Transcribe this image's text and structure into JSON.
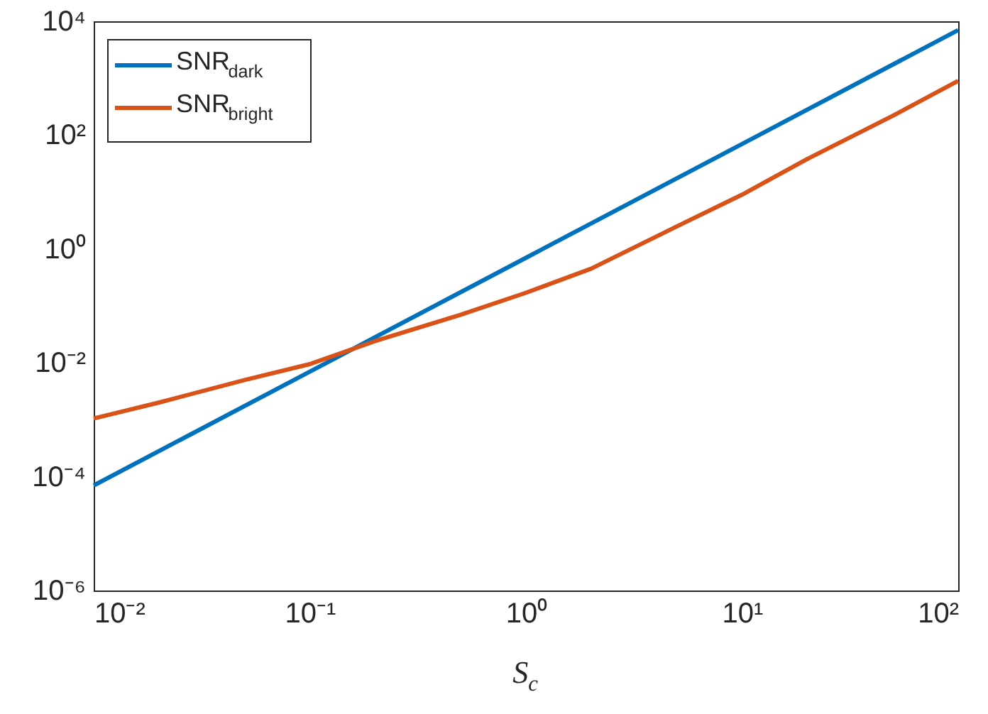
{
  "chart_data": {
    "type": "line",
    "xlabel": "S$_{c}$",
    "log": "xy",
    "grid": false,
    "legend": "top left",
    "line_style": "solid",
    "marker": "none",
    "xlim": [
      0.01,
      100
    ],
    "ylim": [
      1e-06,
      10000
    ],
    "xticks": [
      {
        "value": 0.01,
        "label": "10⁻²"
      },
      {
        "value": 0.1,
        "label": "10⁻¹"
      },
      {
        "value": 1,
        "label": "10⁰"
      },
      {
        "value": 10,
        "label": "10¹"
      },
      {
        "value": 100,
        "label": "10²"
      }
    ],
    "yticks": [
      {
        "value": 1e-06,
        "label": "10⁻⁶"
      },
      {
        "value": 0.0001,
        "label": "10⁻⁴"
      },
      {
        "value": 0.01,
        "label": "10⁻²"
      },
      {
        "value": 1,
        "label": "10⁰"
      },
      {
        "value": 100,
        "label": "10²"
      },
      {
        "value": 10000,
        "label": "10⁴"
      }
    ],
    "series": [
      {
        "name": "SNR$_{dark}$",
        "color": "#0072bd",
        "x": [
          0.01,
          0.1,
          1,
          10,
          100
        ],
        "values": [
          7e-05,
          0.007,
          0.7,
          70,
          7000
        ]
      },
      {
        "name": "SNR$_{bright}$",
        "color": "#d95319",
        "x": [
          0.01,
          0.02,
          0.05,
          0.1,
          0.2,
          0.5,
          1,
          2,
          5,
          10,
          20,
          50,
          100
        ],
        "values": [
          0.00105,
          0.002,
          0.005,
          0.0095,
          0.024,
          0.07,
          0.17,
          0.45,
          2.5,
          9,
          38,
          220,
          900
        ]
      }
    ]
  }
}
